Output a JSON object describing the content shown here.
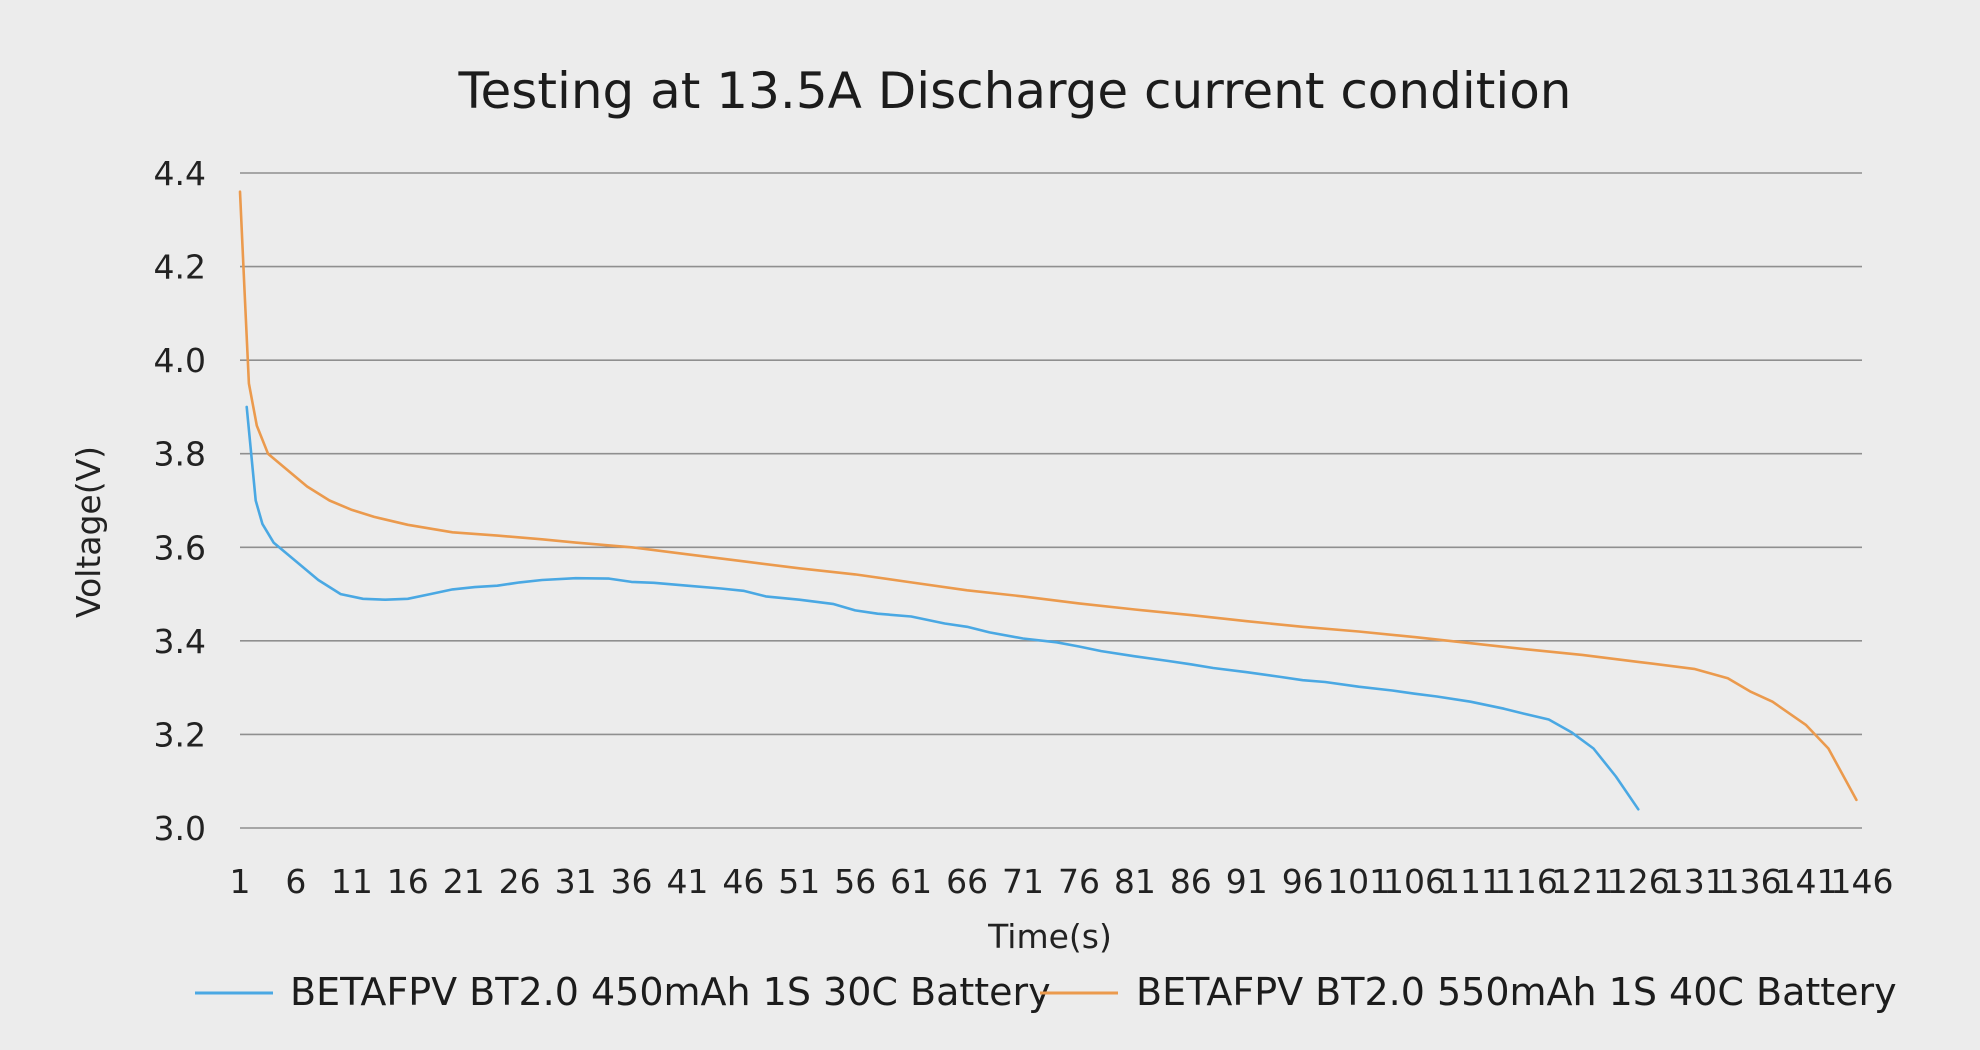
{
  "chart_data": {
    "type": "line",
    "title": "Testing at 13.5A Discharge current condition",
    "xlabel": "Time(s)",
    "ylabel": "Voltage(V)",
    "xlim": [
      1,
      146
    ],
    "ylim": [
      3.0,
      4.4
    ],
    "yticks": [
      "4.4",
      "4.2",
      "4.0",
      "3.8",
      "3.6",
      "3.4",
      "3.2",
      "3.0"
    ],
    "xticks": [
      "1",
      "6",
      "11",
      "16",
      "21",
      "26",
      "31",
      "36",
      "41",
      "46",
      "51",
      "56",
      "61",
      "66",
      "71",
      "76",
      "81",
      "86",
      "91",
      "96",
      "101",
      "106",
      "111",
      "116",
      "121",
      "126",
      "131",
      "136",
      "141",
      "146"
    ],
    "grid": true,
    "legend_position": "bottom",
    "series": [
      {
        "name": "BETAFPV BT2.0 450mAh 1S 30C Battery",
        "color": "#4aa8e3",
        "x": [
          1.6,
          2.0,
          2.4,
          3,
          4,
          6,
          8,
          10,
          12,
          14,
          16,
          18,
          20,
          22,
          24,
          26,
          28,
          31,
          34,
          36,
          38,
          41,
          44,
          46,
          48,
          51,
          54,
          56,
          58,
          61,
          64,
          66,
          68,
          71,
          74,
          76,
          78,
          81,
          84,
          86,
          88,
          91,
          94,
          96,
          98,
          101,
          104,
          106,
          108,
          111,
          114,
          116,
          118,
          120,
          122,
          124,
          126
        ],
        "y": [
          3.9,
          3.8,
          3.7,
          3.65,
          3.61,
          3.57,
          3.53,
          3.5,
          3.49,
          3.488,
          3.49,
          3.5,
          3.51,
          3.515,
          3.518,
          3.525,
          3.53,
          3.534,
          3.533,
          3.526,
          3.524,
          3.518,
          3.512,
          3.507,
          3.495,
          3.488,
          3.479,
          3.465,
          3.458,
          3.452,
          3.437,
          3.43,
          3.418,
          3.405,
          3.397,
          3.388,
          3.378,
          3.367,
          3.357,
          3.35,
          3.342,
          3.333,
          3.323,
          3.316,
          3.312,
          3.302,
          3.294,
          3.287,
          3.281,
          3.27,
          3.255,
          3.243,
          3.232,
          3.205,
          3.17,
          3.11,
          3.04
        ]
      },
      {
        "name": "BETAFPV BT2.0 550mAh 1S 40C Battery",
        "color": "#eb9a4d",
        "x": [
          1,
          1.4,
          1.8,
          2.5,
          3.5,
          5,
          7,
          9,
          11,
          13,
          16,
          20,
          24,
          28,
          31,
          36,
          41,
          46,
          51,
          56,
          61,
          66,
          71,
          76,
          81,
          86,
          91,
          96,
          101,
          106,
          111,
          116,
          121,
          126,
          131,
          134,
          136,
          138,
          141,
          143,
          145.5
        ],
        "y": [
          4.36,
          4.15,
          3.95,
          3.86,
          3.8,
          3.77,
          3.73,
          3.7,
          3.68,
          3.665,
          3.648,
          3.632,
          3.625,
          3.617,
          3.61,
          3.6,
          3.585,
          3.57,
          3.555,
          3.542,
          3.525,
          3.508,
          3.495,
          3.48,
          3.467,
          3.455,
          3.442,
          3.43,
          3.42,
          3.408,
          3.395,
          3.382,
          3.37,
          3.355,
          3.34,
          3.32,
          3.292,
          3.27,
          3.22,
          3.17,
          3.06
        ]
      }
    ]
  }
}
